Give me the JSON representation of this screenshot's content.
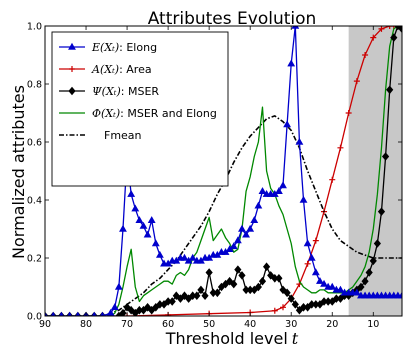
{
  "chart_data": {
    "type": "line",
    "title": "Attributes Evolution",
    "xlabel": "Threshold level",
    "xlabel_var": "t",
    "ylabel": "Normalized attributes",
    "xlim": [
      90,
      3
    ],
    "ylim": [
      0,
      1.0
    ],
    "x_ticks": [
      90,
      80,
      70,
      60,
      50,
      40,
      30,
      20,
      10
    ],
    "y_ticks": [
      "0.0",
      "0.2",
      "0.4",
      "0.6",
      "0.8",
      "1.0"
    ],
    "shaded_region": [
      16,
      3
    ],
    "grid": false,
    "legend_position": "top-left",
    "series": [
      {
        "name": "Elong",
        "legend_math": "E(Xₜ)",
        "color": "#0000cc",
        "marker": "triangle-up",
        "line_style": "solid",
        "x": [
          90,
          88,
          86,
          84,
          82,
          80,
          78,
          76,
          74,
          73,
          72,
          71,
          70,
          69,
          68,
          67,
          66,
          65,
          64,
          63,
          62,
          61,
          60,
          59,
          58,
          57,
          56,
          55,
          54,
          53,
          52,
          51,
          50,
          49,
          48,
          47,
          46,
          45,
          44,
          43,
          42,
          41,
          40,
          39,
          38,
          37,
          36,
          35,
          34,
          33,
          32,
          31,
          30,
          29,
          28,
          27,
          26,
          25,
          24,
          23,
          22,
          21,
          20,
          19,
          18,
          17,
          16,
          15,
          14,
          13,
          12,
          11,
          10,
          9,
          8,
          7,
          6,
          5,
          4,
          3
        ],
        "values": [
          0,
          0,
          0,
          0,
          0,
          0,
          0,
          0,
          0.01,
          0.03,
          0.1,
          0.3,
          0.55,
          0.42,
          0.37,
          0.33,
          0.31,
          0.28,
          0.33,
          0.25,
          0.21,
          0.18,
          0.18,
          0.19,
          0.19,
          0.2,
          0.2,
          0.19,
          0.2,
          0.19,
          0.19,
          0.2,
          0.2,
          0.21,
          0.21,
          0.22,
          0.22,
          0.23,
          0.24,
          0.26,
          0.3,
          0.28,
          0.3,
          0.33,
          0.38,
          0.43,
          0.42,
          0.42,
          0.42,
          0.43,
          0.45,
          0.66,
          0.87,
          1.0,
          0.6,
          0.4,
          0.25,
          0.2,
          0.15,
          0.12,
          0.11,
          0.1,
          0.1,
          0.09,
          0.09,
          0.08,
          0.08,
          0.08,
          0.08,
          0.07,
          0.07,
          0.07,
          0.07,
          0.07,
          0.07,
          0.07,
          0.07,
          0.07,
          0.07,
          0.07
        ]
      },
      {
        "name": "Area",
        "legend_math": "A(Xₜ)",
        "color": "#cc0000",
        "marker": "plus",
        "line_style": "solid",
        "x": [
          90,
          80,
          70,
          60,
          50,
          40,
          34,
          32,
          30,
          28,
          26,
          24,
          22,
          20,
          18,
          16,
          14,
          12,
          10,
          8,
          6,
          5,
          4,
          3
        ],
        "values": [
          0,
          0,
          0,
          0.004,
          0.008,
          0.012,
          0.018,
          0.03,
          0.06,
          0.11,
          0.18,
          0.26,
          0.36,
          0.47,
          0.58,
          0.7,
          0.81,
          0.9,
          0.96,
          0.99,
          1.0,
          1.0,
          1.0,
          1.0
        ]
      },
      {
        "name": "MSER",
        "legend_math": "Ψ(Xₜ)",
        "color": "#000000",
        "marker": "diamond",
        "line_style": "solid",
        "x": [
          90,
          88,
          86,
          84,
          82,
          80,
          78,
          76,
          74,
          72,
          71,
          70,
          69,
          68,
          67,
          66,
          65,
          64,
          63,
          62,
          61,
          60,
          59,
          58,
          57,
          56,
          55,
          54,
          53,
          52,
          51,
          50,
          49,
          48,
          47,
          46,
          45,
          44,
          43,
          42,
          41,
          40,
          39,
          38,
          37,
          36,
          35,
          34,
          33,
          32,
          31,
          30,
          29,
          28,
          27,
          26,
          25,
          24,
          23,
          22,
          21,
          20,
          19,
          18,
          17,
          16,
          15,
          14,
          13,
          12,
          11,
          10,
          9,
          8,
          7,
          6,
          5,
          4,
          3
        ],
        "values": [
          0,
          0,
          0,
          0,
          0,
          0,
          0,
          0,
          0,
          0,
          0.01,
          0.03,
          0.02,
          0.01,
          0.02,
          0.02,
          0.03,
          0.02,
          0.03,
          0.04,
          0.04,
          0.05,
          0.05,
          0.07,
          0.06,
          0.07,
          0.06,
          0.07,
          0.07,
          0.09,
          0.07,
          0.15,
          0.08,
          0.08,
          0.1,
          0.11,
          0.12,
          0.11,
          0.16,
          0.14,
          0.09,
          0.09,
          0.09,
          0.1,
          0.12,
          0.17,
          0.14,
          0.13,
          0.13,
          0.09,
          0.08,
          0.06,
          0.04,
          0.02,
          0.03,
          0.03,
          0.04,
          0.04,
          0.04,
          0.05,
          0.05,
          0.05,
          0.06,
          0.06,
          0.07,
          0.07,
          0.08,
          0.09,
          0.1,
          0.12,
          0.15,
          0.19,
          0.25,
          0.36,
          0.55,
          0.78,
          0.96,
          1.0,
          0.99
        ]
      },
      {
        "name": "MSER and Elong",
        "legend_math": "Φ(Xₜ)",
        "color": "#008800",
        "marker": "none",
        "line_style": "solid",
        "x": [
          90,
          80,
          74,
          73,
          72,
          71,
          70,
          69,
          68,
          67,
          66,
          65,
          64,
          63,
          62,
          61,
          60,
          59,
          58,
          57,
          56,
          55,
          54,
          53,
          52,
          51,
          50,
          49,
          48,
          47,
          46,
          45,
          44,
          43,
          42,
          41,
          40,
          39,
          38,
          37,
          36,
          35,
          34,
          33,
          32,
          31,
          30,
          29,
          28,
          27,
          26,
          25,
          24,
          23,
          22,
          21,
          20,
          19,
          18,
          17,
          16,
          15,
          14,
          13,
          12,
          11,
          10,
          9,
          8,
          7,
          6,
          5,
          4,
          3
        ],
        "values": [
          0,
          0,
          0,
          0.01,
          0.04,
          0.1,
          0.17,
          0.23,
          0.1,
          0.05,
          0.07,
          0.08,
          0.09,
          0.1,
          0.11,
          0.12,
          0.12,
          0.11,
          0.14,
          0.15,
          0.14,
          0.16,
          0.2,
          0.22,
          0.26,
          0.3,
          0.34,
          0.26,
          0.28,
          0.3,
          0.27,
          0.25,
          0.22,
          0.23,
          0.3,
          0.43,
          0.48,
          0.55,
          0.6,
          0.72,
          0.5,
          0.44,
          0.42,
          0.38,
          0.35,
          0.3,
          0.25,
          0.17,
          0.12,
          0.1,
          0.09,
          0.08,
          0.08,
          0.09,
          0.09,
          0.08,
          0.08,
          0.08,
          0.08,
          0.08,
          0.09,
          0.1,
          0.12,
          0.14,
          0.17,
          0.22,
          0.3,
          0.42,
          0.58,
          0.78,
          0.93,
          0.99,
          1.0,
          0.99
        ]
      },
      {
        "name": "Fmean",
        "color": "#000000",
        "marker": "none",
        "line_style": "dashdot",
        "x": [
          90,
          80,
          76,
          72,
          70,
          68,
          66,
          64,
          62,
          60,
          58,
          56,
          54,
          52,
          50,
          48,
          46,
          44,
          42,
          40,
          38,
          36,
          34,
          32,
          30,
          28,
          26,
          24,
          22,
          20,
          18,
          16,
          14,
          12,
          10,
          8,
          6,
          4,
          3
        ],
        "values": [
          0,
          0,
          0,
          0.02,
          0.04,
          0.06,
          0.08,
          0.11,
          0.13,
          0.16,
          0.19,
          0.23,
          0.27,
          0.31,
          0.36,
          0.42,
          0.47,
          0.53,
          0.58,
          0.62,
          0.65,
          0.68,
          0.69,
          0.67,
          0.64,
          0.58,
          0.5,
          0.43,
          0.36,
          0.3,
          0.26,
          0.24,
          0.22,
          0.21,
          0.2,
          0.2,
          0.2,
          0.2,
          0.2
        ]
      }
    ]
  }
}
